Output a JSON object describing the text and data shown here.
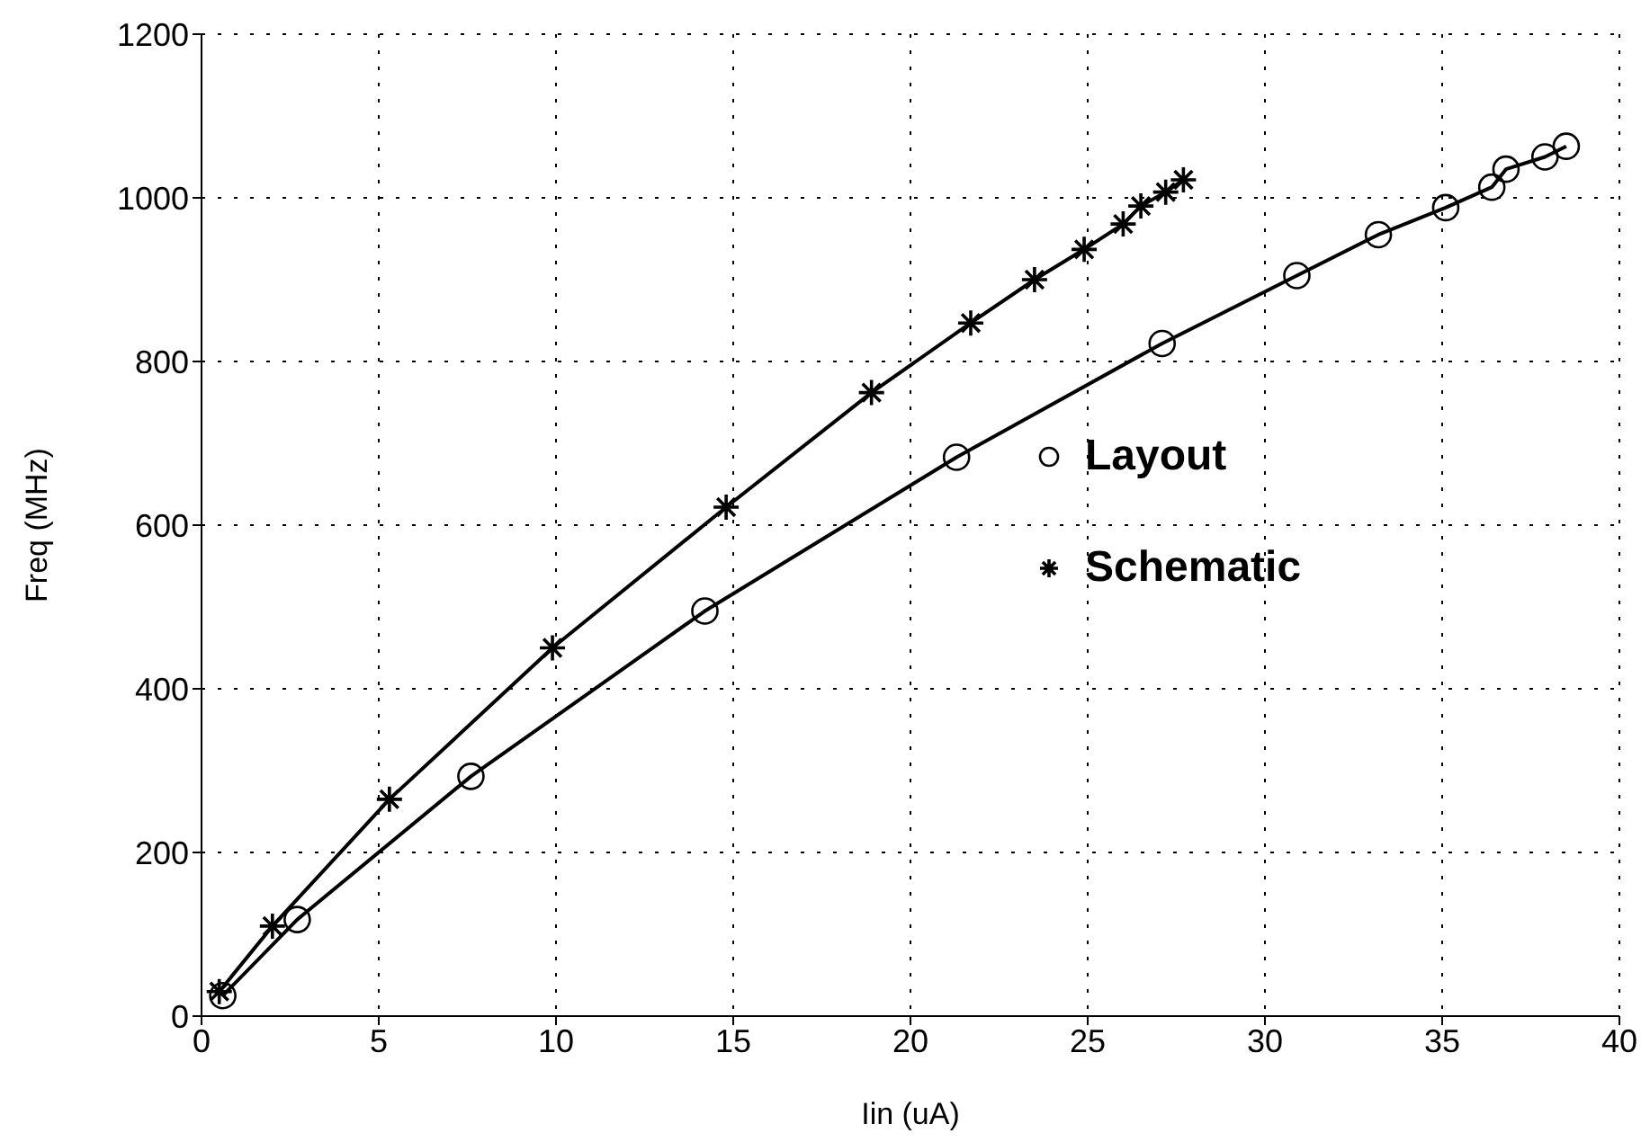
{
  "chart_data": {
    "type": "line",
    "xlabel": "Iin (uA)",
    "ylabel": "Freq (MHz)",
    "xlim": [
      0,
      40
    ],
    "xticks": [
      0,
      5,
      10,
      15,
      20,
      25,
      30,
      35,
      40
    ],
    "ylim": [
      0,
      1200
    ],
    "yticks": [
      0,
      200,
      400,
      600,
      800,
      1000,
      1200
    ],
    "grid": true,
    "legend": "right",
    "series": [
      {
        "name": "Layout",
        "color": "#000000",
        "marker": "circle",
        "x": [
          0.6,
          2.7,
          7.6,
          14.2,
          21.3,
          27.1,
          30.9,
          33.2,
          35.1,
          36.4,
          36.8,
          37.9,
          38.5
        ],
        "values": [
          25,
          118,
          293,
          495,
          683,
          822,
          905,
          955,
          988,
          1013,
          1035,
          1050,
          1063
        ]
      },
      {
        "name": "Schematic",
        "color": "#000000",
        "marker": "cross",
        "x": [
          0.5,
          2.0,
          5.3,
          9.9,
          14.8,
          18.9,
          21.7,
          23.5,
          24.9,
          26.0,
          26.5,
          27.2,
          27.7
        ],
        "values": [
          30,
          110,
          265,
          450,
          622,
          762,
          847,
          900,
          937,
          968,
          990,
          1007,
          1022
        ]
      }
    ]
  }
}
